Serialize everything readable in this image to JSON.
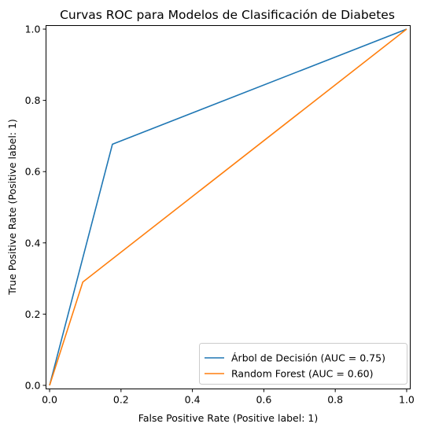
{
  "chart_data": {
    "type": "line",
    "title": "Curvas ROC para Modelos de Clasificación de Diabetes",
    "xlabel": "False Positive Rate (Positive label: 1)",
    "ylabel": "True Positive Rate (Positive label: 1)",
    "xlim": [
      -0.01,
      1.01
    ],
    "ylim": [
      -0.01,
      1.01
    ],
    "xticks": [
      "0.0",
      "0.2",
      "0.4",
      "0.6",
      "0.8",
      "1.0"
    ],
    "yticks": [
      "0.0",
      "0.2",
      "0.4",
      "0.6",
      "0.8",
      "1.0"
    ],
    "grid": false,
    "legend_position": "lower-right",
    "series": [
      {
        "name": "Árbol de Decisión (AUC = 0.75)",
        "color": "#1f77b4",
        "x": [
          0.0,
          0.176,
          1.0
        ],
        "y": [
          0.0,
          0.677,
          1.0
        ]
      },
      {
        "name": "Random Forest (AUC = 0.60)",
        "color": "#ff7f0e",
        "x": [
          0.0,
          0.093,
          1.0
        ],
        "y": [
          0.0,
          0.29,
          1.0
        ]
      }
    ]
  }
}
